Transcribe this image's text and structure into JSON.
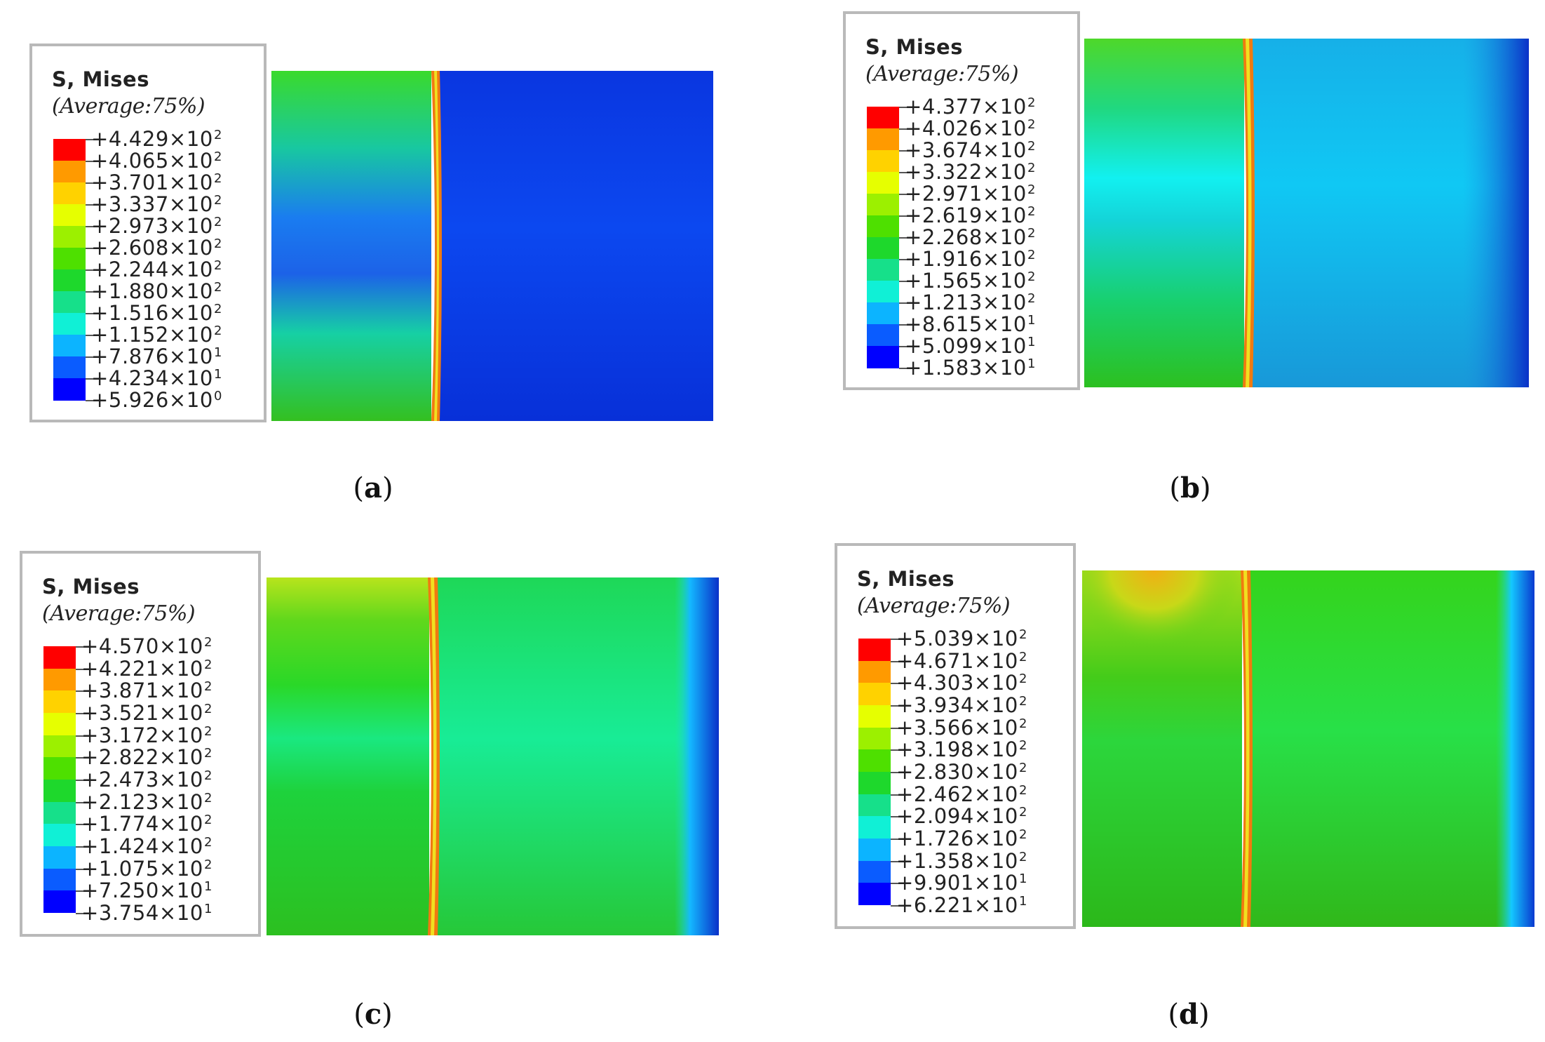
{
  "panels": [
    {
      "caption": "a",
      "legend_title": "S, Mises",
      "legend_subtitle": "(Average:75%)",
      "ticks": [
        {
          "mantissa": "+4.429",
          "exp": "2"
        },
        {
          "mantissa": "+4.065",
          "exp": "2"
        },
        {
          "mantissa": "+3.701",
          "exp": "2"
        },
        {
          "mantissa": "+3.337",
          "exp": "2"
        },
        {
          "mantissa": "+2.973",
          "exp": "2"
        },
        {
          "mantissa": "+2.608",
          "exp": "2"
        },
        {
          "mantissa": "+2.244",
          "exp": "2"
        },
        {
          "mantissa": "+1.880",
          "exp": "2"
        },
        {
          "mantissa": "+1.516",
          "exp": "2"
        },
        {
          "mantissa": "+1.152",
          "exp": "2"
        },
        {
          "mantissa": "+7.876",
          "exp": "1"
        },
        {
          "mantissa": "+4.234",
          "exp": "1"
        },
        {
          "mantissa": "+5.926",
          "exp": "0"
        }
      ]
    },
    {
      "caption": "b",
      "legend_title": "S, Mises",
      "legend_subtitle": "(Average:75%)",
      "ticks": [
        {
          "mantissa": "+4.377",
          "exp": "2"
        },
        {
          "mantissa": "+4.026",
          "exp": "2"
        },
        {
          "mantissa": "+3.674",
          "exp": "2"
        },
        {
          "mantissa": "+3.322",
          "exp": "2"
        },
        {
          "mantissa": "+2.971",
          "exp": "2"
        },
        {
          "mantissa": "+2.619",
          "exp": "2"
        },
        {
          "mantissa": "+2.268",
          "exp": "2"
        },
        {
          "mantissa": "+1.916",
          "exp": "2"
        },
        {
          "mantissa": "+1.565",
          "exp": "2"
        },
        {
          "mantissa": "+1.213",
          "exp": "2"
        },
        {
          "mantissa": "+8.615",
          "exp": "1"
        },
        {
          "mantissa": "+5.099",
          "exp": "1"
        },
        {
          "mantissa": "+1.583",
          "exp": "1"
        }
      ]
    },
    {
      "caption": "c",
      "legend_title": "S, Mises",
      "legend_subtitle": "(Average:75%)",
      "ticks": [
        {
          "mantissa": "+4.570",
          "exp": "2"
        },
        {
          "mantissa": "+4.221",
          "exp": "2"
        },
        {
          "mantissa": "+3.871",
          "exp": "2"
        },
        {
          "mantissa": "+3.521",
          "exp": "2"
        },
        {
          "mantissa": "+3.172",
          "exp": "2"
        },
        {
          "mantissa": "+2.822",
          "exp": "2"
        },
        {
          "mantissa": "+2.473",
          "exp": "2"
        },
        {
          "mantissa": "+2.123",
          "exp": "2"
        },
        {
          "mantissa": "+1.774",
          "exp": "2"
        },
        {
          "mantissa": "+1.424",
          "exp": "2"
        },
        {
          "mantissa": "+1.075",
          "exp": "2"
        },
        {
          "mantissa": "+7.250",
          "exp": "1"
        },
        {
          "mantissa": "+3.754",
          "exp": "1"
        }
      ]
    },
    {
      "caption": "d",
      "legend_title": "S, Mises",
      "legend_subtitle": "(Average:75%)",
      "ticks": [
        {
          "mantissa": "+5.039",
          "exp": "2"
        },
        {
          "mantissa": "+4.671",
          "exp": "2"
        },
        {
          "mantissa": "+4.303",
          "exp": "2"
        },
        {
          "mantissa": "+3.934",
          "exp": "2"
        },
        {
          "mantissa": "+3.566",
          "exp": "2"
        },
        {
          "mantissa": "+3.198",
          "exp": "2"
        },
        {
          "mantissa": "+2.830",
          "exp": "2"
        },
        {
          "mantissa": "+2.462",
          "exp": "2"
        },
        {
          "mantissa": "+2.094",
          "exp": "2"
        },
        {
          "mantissa": "+1.726",
          "exp": "2"
        },
        {
          "mantissa": "+1.358",
          "exp": "2"
        },
        {
          "mantissa": "+9.901",
          "exp": "1"
        },
        {
          "mantissa": "+6.221",
          "exp": "1"
        }
      ]
    }
  ],
  "colormap": [
    "#ff0000",
    "#ff5a00",
    "#ff9a00",
    "#ffd200",
    "#e6ff00",
    "#9cf000",
    "#4ee000",
    "#1ed82c",
    "#16e08a",
    "#10f0d6",
    "#0cb4ff",
    "#0a5cff",
    "#0000ff"
  ]
}
